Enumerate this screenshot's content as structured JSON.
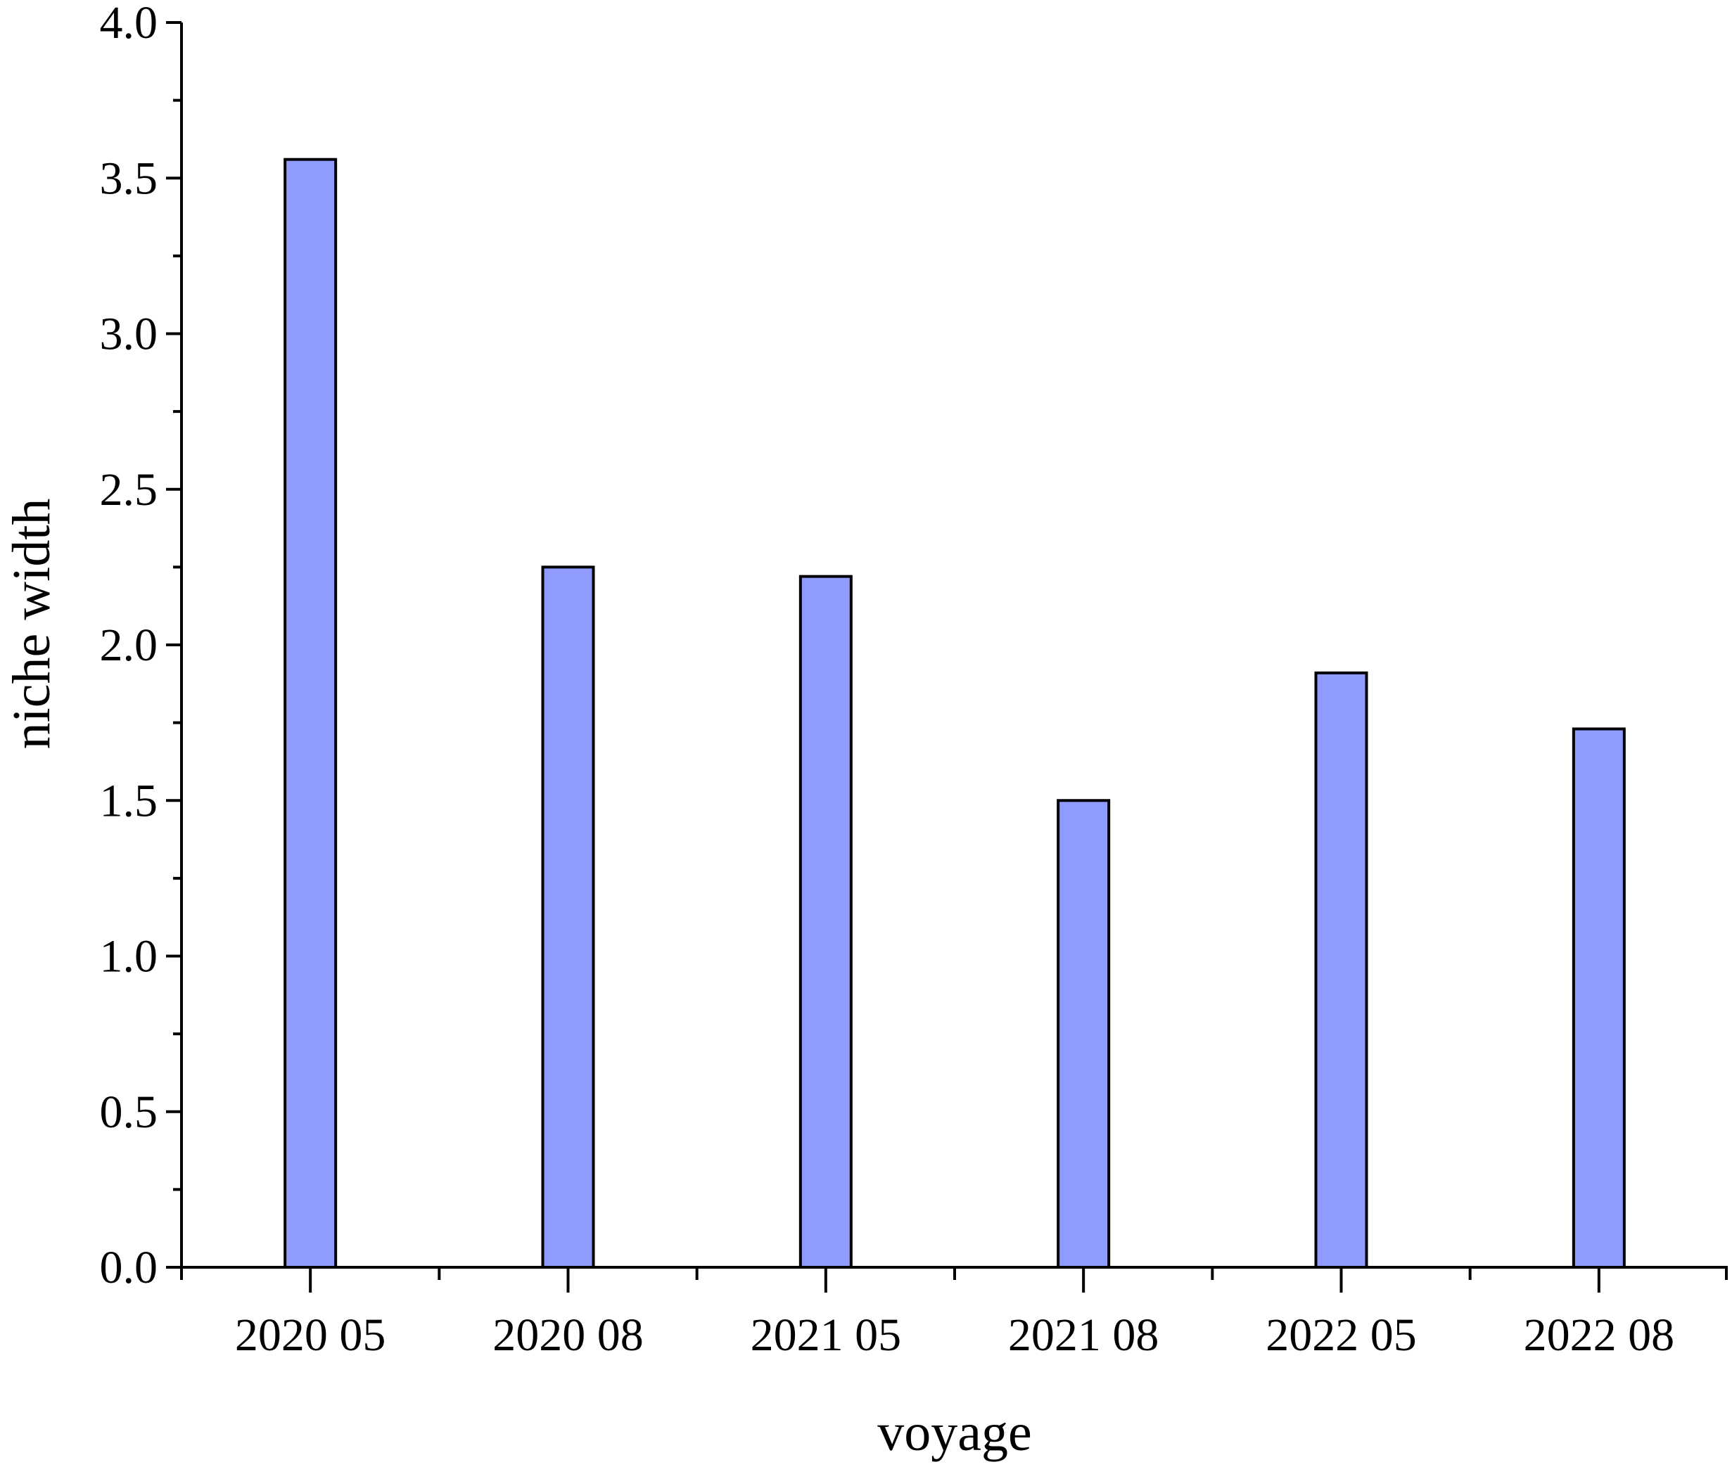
{
  "chart_data": {
    "type": "bar",
    "title": "",
    "xlabel": "voyage",
    "ylabel": "niche width",
    "categories": [
      "2020 05",
      "2020 08",
      "2021 05",
      "2021 08",
      "2022 05",
      "2022 08"
    ],
    "values": [
      3.56,
      2.25,
      2.22,
      1.5,
      1.91,
      1.73
    ],
    "ylim": [
      0,
      4.0
    ],
    "yticks": [
      "0.0",
      "0.5",
      "1.0",
      "1.5",
      "2.0",
      "2.5",
      "3.0",
      "3.5",
      "4.0"
    ],
    "grid": false,
    "legend": "none",
    "colors": {
      "bar_fill": "#8f9bff",
      "bar_stroke": "#000000",
      "axis": "#000000"
    }
  }
}
